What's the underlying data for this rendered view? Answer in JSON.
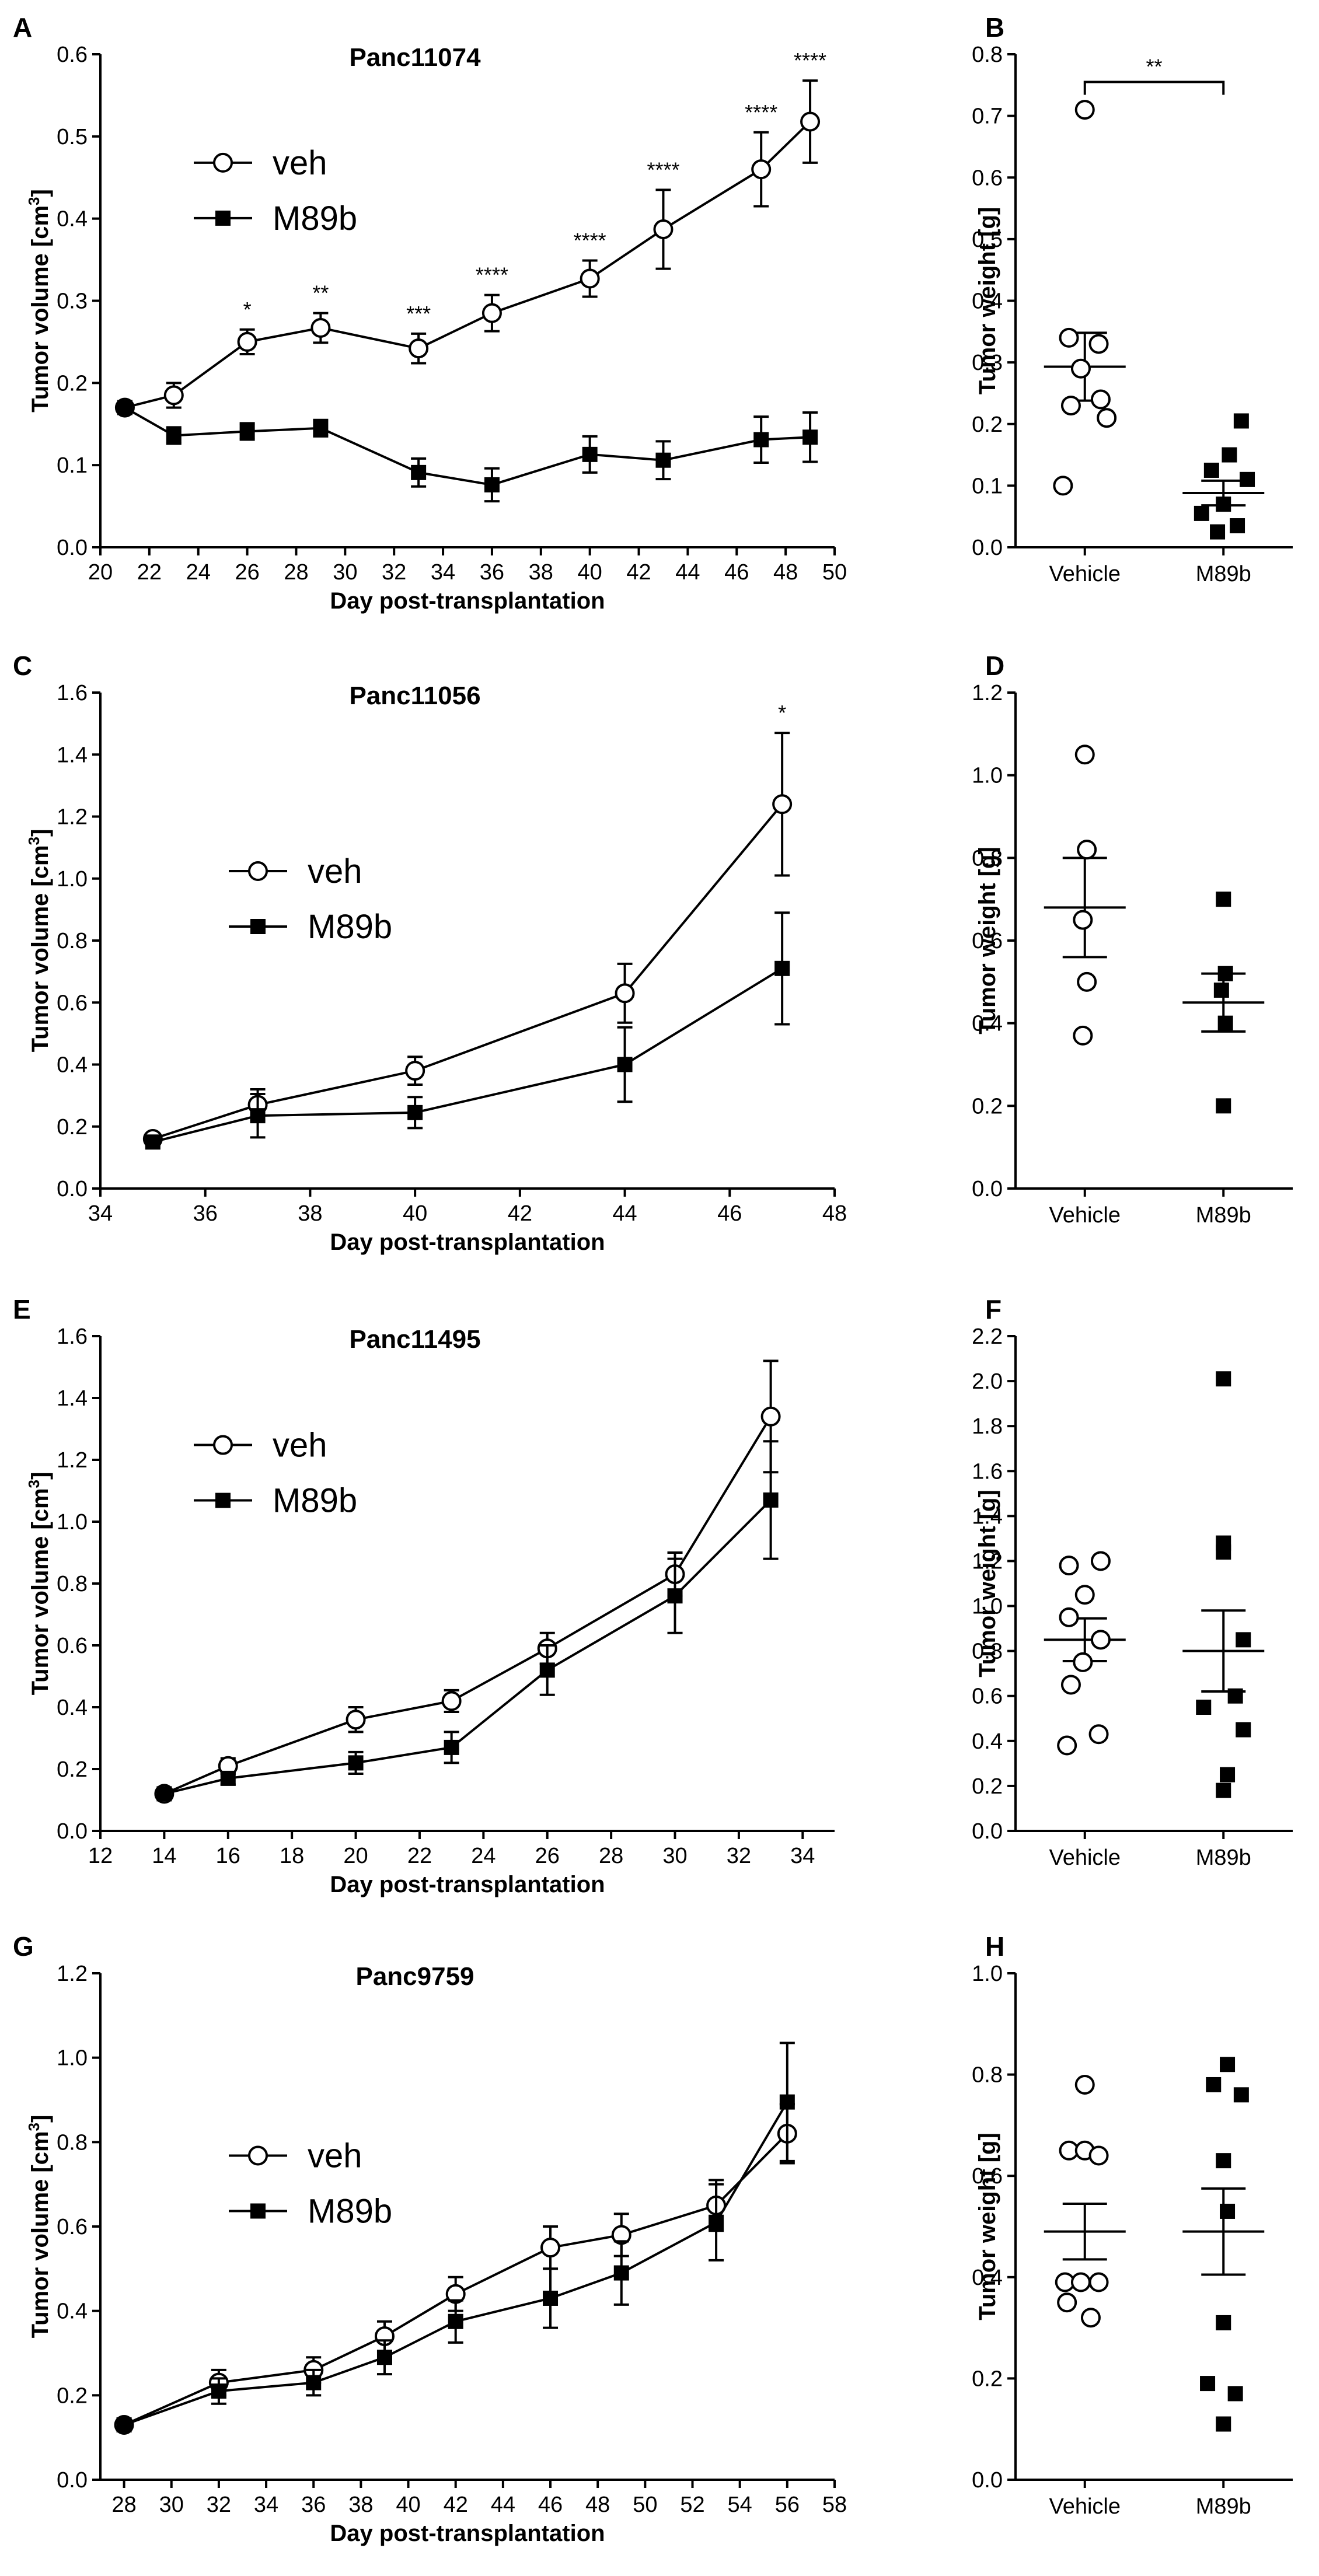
{
  "chart_data": [
    {
      "letter": "A",
      "type": "line",
      "title": "Panc11074",
      "xlabel": "Day post-transplantation",
      "ylabel": "Tumor volume [cm3]",
      "xlim": [
        20,
        50
      ],
      "ylim": [
        0,
        0.6
      ],
      "xticks": [
        20,
        22,
        24,
        26,
        28,
        30,
        32,
        34,
        36,
        38,
        40,
        42,
        44,
        46,
        48,
        50
      ],
      "yticks": [
        0.0,
        0.1,
        0.2,
        0.3,
        0.4,
        0.5,
        0.6
      ],
      "ytick_labels": [
        "0.0",
        "0.1",
        "0.2",
        "0.3",
        "0.4",
        "0.5",
        "0.6"
      ],
      "legend": [
        "veh",
        "M89b"
      ],
      "legend_position": "upper-left",
      "series": [
        {
          "name": "veh",
          "marker": "open-circle",
          "x": [
            21,
            23,
            26,
            29,
            33,
            36,
            40,
            43,
            47,
            49
          ],
          "y": [
            0.17,
            0.185,
            0.25,
            0.267,
            0.242,
            0.285,
            0.327,
            0.387,
            0.46,
            0.518
          ],
          "err": [
            0.005,
            0.015,
            0.015,
            0.018,
            0.018,
            0.022,
            0.022,
            0.048,
            0.045,
            0.05
          ]
        },
        {
          "name": "M89b",
          "marker": "filled-square",
          "x": [
            21,
            23,
            26,
            29,
            33,
            36,
            40,
            43,
            47,
            49
          ],
          "y": [
            0.17,
            0.136,
            0.141,
            0.145,
            0.091,
            0.076,
            0.113,
            0.106,
            0.131,
            0.134
          ],
          "err": [
            0.005,
            0.01,
            0.01,
            0.01,
            0.017,
            0.02,
            0.022,
            0.023,
            0.028,
            0.03
          ]
        }
      ],
      "annotations": [
        {
          "x": 26,
          "text": "*"
        },
        {
          "x": 29,
          "text": "**"
        },
        {
          "x": 33,
          "text": "***"
        },
        {
          "x": 36,
          "text": "****"
        },
        {
          "x": 40,
          "text": "****"
        },
        {
          "x": 43,
          "text": "****"
        },
        {
          "x": 47,
          "text": "****"
        },
        {
          "x": 49,
          "text": "****"
        }
      ]
    },
    {
      "letter": "B",
      "type": "scatter",
      "xlabel": "",
      "ylabel": "Tumor weight [g]",
      "categories": [
        "Vehicle",
        "M89b"
      ],
      "ylim": [
        0,
        0.8
      ],
      "yticks": [
        0.0,
        0.1,
        0.2,
        0.3,
        0.4,
        0.5,
        0.6,
        0.7,
        0.8
      ],
      "ytick_labels": [
        "0.0",
        "0.1",
        "0.2",
        "0.3",
        "0.4",
        "0.5",
        "0.6",
        "0.7",
        "0.8"
      ],
      "groups": [
        {
          "name": "Vehicle",
          "marker": "open-circle",
          "mean": 0.293,
          "sem": 0.055,
          "points": [
            0.71,
            0.34,
            0.33,
            0.29,
            0.24,
            0.23,
            0.21,
            0.1
          ],
          "offsets": [
            0,
            -0.4,
            0.35,
            -0.1,
            0.4,
            -0.35,
            0.55,
            -0.55
          ]
        },
        {
          "name": "M89b",
          "marker": "filled-square",
          "mean": 0.088,
          "sem": 0.02,
          "points": [
            0.205,
            0.15,
            0.125,
            0.11,
            0.07,
            0.055,
            0.035,
            0.025
          ],
          "offsets": [
            0.45,
            0.15,
            -0.3,
            0.6,
            0.0,
            -0.55,
            0.35,
            -0.15
          ]
        }
      ],
      "bracket": {
        "from": "Vehicle",
        "to": "M89b",
        "y": 0.755,
        "label": "**"
      }
    },
    {
      "letter": "C",
      "type": "line",
      "title": "Panc11056",
      "xlabel": "Day post-transplantation",
      "ylabel": "Tumor volume [cm3]",
      "xlim": [
        34,
        48
      ],
      "ylim": [
        0,
        1.6
      ],
      "xticks": [
        34,
        36,
        38,
        40,
        42,
        44,
        46,
        48
      ],
      "yticks": [
        0.0,
        0.2,
        0.4,
        0.6,
        0.8,
        1.0,
        1.2,
        1.4,
        1.6
      ],
      "ytick_labels": [
        "0.0",
        "0.2",
        "0.4",
        "0.6",
        "0.8",
        "1.0",
        "1.2",
        "1.4",
        "1.6"
      ],
      "legend": [
        "veh",
        "M89b"
      ],
      "legend_position": "middle-left",
      "series": [
        {
          "name": "veh",
          "marker": "open-circle",
          "x": [
            35,
            37,
            40,
            44,
            47
          ],
          "y": [
            0.16,
            0.27,
            0.38,
            0.63,
            1.24
          ],
          "err": [
            0.01,
            0.05,
            0.045,
            0.095,
            0.23
          ]
        },
        {
          "name": "M89b",
          "marker": "filled-square",
          "x": [
            35,
            37,
            40,
            44,
            47
          ],
          "y": [
            0.15,
            0.235,
            0.245,
            0.4,
            0.71
          ],
          "err": [
            0.01,
            0.07,
            0.05,
            0.12,
            0.18
          ]
        }
      ],
      "annotations": [
        {
          "x": 47,
          "text": "*"
        }
      ]
    },
    {
      "letter": "D",
      "type": "scatter",
      "xlabel": "",
      "ylabel": "Tumor weight [g]",
      "categories": [
        "Vehicle",
        "M89b"
      ],
      "ylim": [
        0,
        1.2
      ],
      "yticks": [
        0.0,
        0.2,
        0.4,
        0.6,
        0.8,
        1.0,
        1.2
      ],
      "ytick_labels": [
        "0.0",
        "0.2",
        "0.4",
        "0.6",
        "0.8",
        "1.0",
        "1.2"
      ],
      "groups": [
        {
          "name": "Vehicle",
          "marker": "open-circle",
          "mean": 0.68,
          "sem": 0.12,
          "points": [
            1.05,
            0.82,
            0.65,
            0.5,
            0.37
          ],
          "offsets": [
            0,
            0.05,
            -0.05,
            0.05,
            -0.05
          ]
        },
        {
          "name": "M89b",
          "marker": "filled-square",
          "mean": 0.45,
          "sem": 0.07,
          "points": [
            0.7,
            0.52,
            0.48,
            0.4,
            0.2
          ],
          "offsets": [
            0,
            0.05,
            -0.05,
            0.05,
            0
          ]
        }
      ]
    },
    {
      "letter": "E",
      "type": "line",
      "title": "Panc11495",
      "xlabel": "Day post-transplantation",
      "ylabel": "Tumor volume [cm3]",
      "xlim": [
        12,
        35
      ],
      "ylim": [
        0,
        1.6
      ],
      "xticks": [
        12,
        14,
        16,
        18,
        20,
        22,
        24,
        26,
        28,
        30,
        32,
        34
      ],
      "yticks": [
        0.0,
        0.2,
        0.4,
        0.6,
        0.8,
        1.0,
        1.2,
        1.4,
        1.6
      ],
      "ytick_labels": [
        "0.0",
        "0.2",
        "0.4",
        "0.6",
        "0.8",
        "1.0",
        "1.2",
        "1.4",
        "1.6"
      ],
      "legend": [
        "veh",
        "M89b"
      ],
      "legend_position": "upper-left",
      "series": [
        {
          "name": "veh",
          "marker": "open-circle",
          "x": [
            14,
            16,
            20,
            23,
            26,
            30,
            33
          ],
          "y": [
            0.12,
            0.21,
            0.36,
            0.42,
            0.59,
            0.83,
            1.34
          ],
          "err": [
            0.01,
            0.025,
            0.04,
            0.035,
            0.05,
            0.07,
            0.18
          ]
        },
        {
          "name": "M89b",
          "marker": "filled-square",
          "x": [
            14,
            16,
            20,
            23,
            26,
            30,
            33
          ],
          "y": [
            0.12,
            0.17,
            0.22,
            0.27,
            0.52,
            0.76,
            1.07
          ],
          "err": [
            0.01,
            0.02,
            0.035,
            0.05,
            0.08,
            0.12,
            0.19
          ]
        }
      ]
    },
    {
      "letter": "F",
      "type": "scatter",
      "xlabel": "",
      "ylabel": "Tumor weight [g]",
      "categories": [
        "Vehicle",
        "M89b"
      ],
      "ylim": [
        0,
        2.2
      ],
      "yticks": [
        0.0,
        0.2,
        0.4,
        0.6,
        0.8,
        1.0,
        1.2,
        1.4,
        1.6,
        1.8,
        2.0,
        2.2
      ],
      "ytick_labels": [
        "0.0",
        "0.2",
        "0.4",
        "0.6",
        "0.8",
        "1.0",
        "1.2",
        "1.4",
        "1.6",
        "1.8",
        "2.0",
        "2.2"
      ],
      "groups": [
        {
          "name": "Vehicle",
          "marker": "open-circle",
          "mean": 0.85,
          "sem": 0.095,
          "points": [
            1.2,
            1.18,
            1.05,
            0.95,
            0.85,
            0.75,
            0.65,
            0.43,
            0.38
          ],
          "offsets": [
            0.4,
            -0.4,
            0.0,
            -0.4,
            0.4,
            -0.05,
            -0.35,
            0.35,
            -0.45
          ]
        },
        {
          "name": "M89b",
          "marker": "filled-square",
          "mean": 0.8,
          "sem": 0.18,
          "points": [
            2.01,
            1.28,
            1.24,
            0.85,
            0.6,
            0.55,
            0.45,
            0.25,
            0.18
          ],
          "offsets": [
            0.0,
            0.0,
            0.0,
            0.5,
            0.3,
            -0.5,
            0.5,
            0.1,
            0.0
          ]
        }
      ]
    },
    {
      "letter": "G",
      "type": "line",
      "title": "Panc9759",
      "xlabel": "Day post-transplantation",
      "ylabel": "Tumor volume [cm3]",
      "xlim": [
        27,
        58
      ],
      "ylim": [
        0,
        1.2
      ],
      "xticks": [
        28,
        30,
        32,
        34,
        36,
        38,
        40,
        42,
        44,
        46,
        48,
        50,
        52,
        54,
        56,
        58
      ],
      "yticks": [
        0.0,
        0.2,
        0.4,
        0.6,
        0.8,
        1.0,
        1.2
      ],
      "ytick_labels": [
        "0.0",
        "0.2",
        "0.4",
        "0.6",
        "0.8",
        "1.0",
        "1.2"
      ],
      "legend": [
        "veh",
        "M89b"
      ],
      "legend_position": "middle-left",
      "series": [
        {
          "name": "veh",
          "marker": "open-circle",
          "x": [
            28,
            32,
            36,
            39,
            42,
            46,
            49,
            53,
            56
          ],
          "y": [
            0.13,
            0.23,
            0.26,
            0.34,
            0.44,
            0.55,
            0.58,
            0.65,
            0.82
          ],
          "err": [
            0.005,
            0.03,
            0.03,
            0.035,
            0.04,
            0.05,
            0.05,
            0.06,
            0.07
          ]
        },
        {
          "name": "M89b",
          "marker": "filled-square",
          "x": [
            28,
            32,
            36,
            39,
            42,
            46,
            49,
            53,
            56
          ],
          "y": [
            0.13,
            0.21,
            0.23,
            0.29,
            0.375,
            0.43,
            0.49,
            0.61,
            0.895
          ],
          "err": [
            0.005,
            0.03,
            0.03,
            0.04,
            0.05,
            0.07,
            0.075,
            0.09,
            0.14
          ]
        }
      ]
    },
    {
      "letter": "H",
      "type": "scatter",
      "xlabel": "",
      "ylabel": "Tumor weight [g]",
      "categories": [
        "Vehicle",
        "M89b"
      ],
      "ylim": [
        0,
        1.0
      ],
      "yticks": [
        0.0,
        0.2,
        0.4,
        0.6,
        0.8,
        1.0
      ],
      "ytick_labels": [
        "0.0",
        "0.2",
        "0.4",
        "0.6",
        "0.8",
        "1.0"
      ],
      "groups": [
        {
          "name": "Vehicle",
          "marker": "open-circle",
          "mean": 0.49,
          "sem": 0.055,
          "points": [
            0.78,
            0.65,
            0.65,
            0.64,
            0.39,
            0.39,
            0.39,
            0.35,
            0.32
          ],
          "offsets": [
            0.0,
            -0.4,
            0.0,
            0.35,
            -0.5,
            -0.1,
            0.35,
            -0.45,
            0.15
          ]
        },
        {
          "name": "M89b",
          "marker": "filled-square",
          "mean": 0.49,
          "sem": 0.085,
          "points": [
            0.82,
            0.78,
            0.76,
            0.63,
            0.53,
            0.31,
            0.19,
            0.17,
            0.11
          ],
          "offsets": [
            0.1,
            -0.25,
            0.45,
            0.0,
            0.1,
            0.0,
            -0.4,
            0.3,
            0.0
          ]
        }
      ]
    }
  ]
}
